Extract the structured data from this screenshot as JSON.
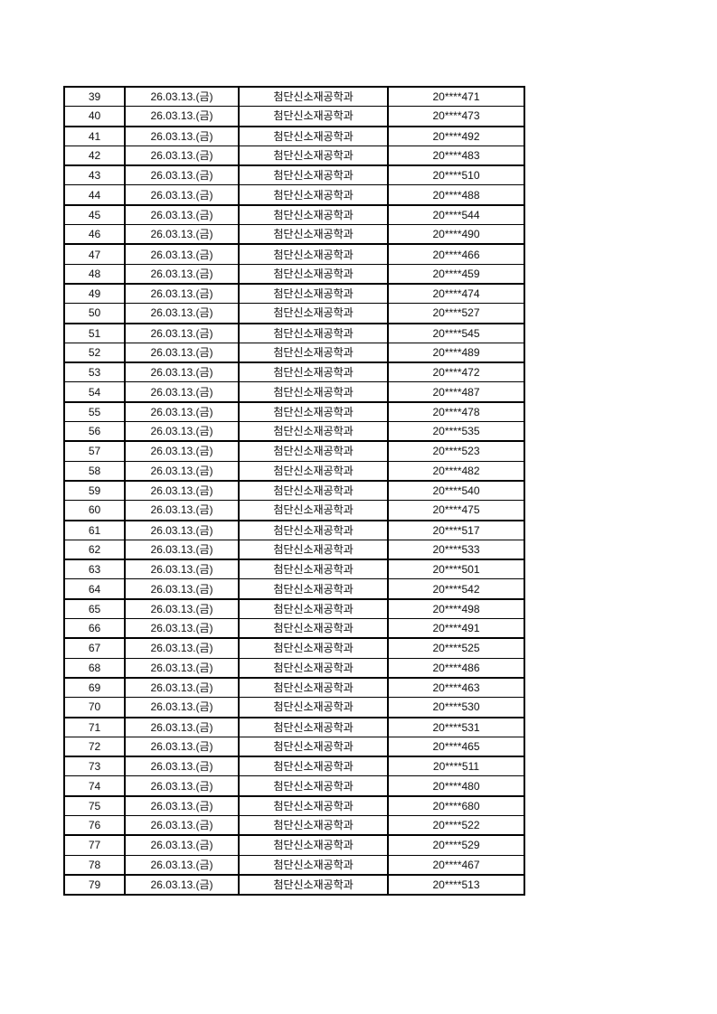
{
  "document": {
    "type": "printed-roster-page",
    "background_color": "#ffffff",
    "text_color": "#1a1a1a",
    "border_color": "#000000"
  },
  "table": {
    "columns": [
      {
        "name": "row-number"
      },
      {
        "name": "exam-date"
      },
      {
        "name": "department"
      },
      {
        "name": "student-id"
      }
    ],
    "repeated_values": {
      "date": "26.03.13.(금)",
      "department": "첨단신소재공학과"
    },
    "rows": [
      [
        "39",
        "26.03.13.(금)",
        "첨단신소재공학과",
        "20****471"
      ],
      [
        "40",
        "26.03.13.(금)",
        "첨단신소재공학과",
        "20****473"
      ],
      [
        "41",
        "26.03.13.(금)",
        "첨단신소재공학과",
        "20****492"
      ],
      [
        "42",
        "26.03.13.(금)",
        "첨단신소재공학과",
        "20****483"
      ],
      [
        "43",
        "26.03.13.(금)",
        "첨단신소재공학과",
        "20****510"
      ],
      [
        "44",
        "26.03.13.(금)",
        "첨단신소재공학과",
        "20****488"
      ],
      [
        "45",
        "26.03.13.(금)",
        "첨단신소재공학과",
        "20****544"
      ],
      [
        "46",
        "26.03.13.(금)",
        "첨단신소재공학과",
        "20****490"
      ],
      [
        "47",
        "26.03.13.(금)",
        "첨단신소재공학과",
        "20****466"
      ],
      [
        "48",
        "26.03.13.(금)",
        "첨단신소재공학과",
        "20****459"
      ],
      [
        "49",
        "26.03.13.(금)",
        "첨단신소재공학과",
        "20****474"
      ],
      [
        "50",
        "26.03.13.(금)",
        "첨단신소재공학과",
        "20****527"
      ],
      [
        "51",
        "26.03.13.(금)",
        "첨단신소재공학과",
        "20****545"
      ],
      [
        "52",
        "26.03.13.(금)",
        "첨단신소재공학과",
        "20****489"
      ],
      [
        "53",
        "26.03.13.(금)",
        "첨단신소재공학과",
        "20****472"
      ],
      [
        "54",
        "26.03.13.(금)",
        "첨단신소재공학과",
        "20****487"
      ],
      [
        "55",
        "26.03.13.(금)",
        "첨단신소재공학과",
        "20****478"
      ],
      [
        "56",
        "26.03.13.(금)",
        "첨단신소재공학과",
        "20****535"
      ],
      [
        "57",
        "26.03.13.(금)",
        "첨단신소재공학과",
        "20****523"
      ],
      [
        "58",
        "26.03.13.(금)",
        "첨단신소재공학과",
        "20****482"
      ],
      [
        "59",
        "26.03.13.(금)",
        "첨단신소재공학과",
        "20****540"
      ],
      [
        "60",
        "26.03.13.(금)",
        "첨단신소재공학과",
        "20****475"
      ],
      [
        "61",
        "26.03.13.(금)",
        "첨단신소재공학과",
        "20****517"
      ],
      [
        "62",
        "26.03.13.(금)",
        "첨단신소재공학과",
        "20****533"
      ],
      [
        "63",
        "26.03.13.(금)",
        "첨단신소재공학과",
        "20****501"
      ],
      [
        "64",
        "26.03.13.(금)",
        "첨단신소재공학과",
        "20****542"
      ],
      [
        "65",
        "26.03.13.(금)",
        "첨단신소재공학과",
        "20****498"
      ],
      [
        "66",
        "26.03.13.(금)",
        "첨단신소재공학과",
        "20****491"
      ],
      [
        "67",
        "26.03.13.(금)",
        "첨단신소재공학과",
        "20****525"
      ],
      [
        "68",
        "26.03.13.(금)",
        "첨단신소재공학과",
        "20****486"
      ],
      [
        "69",
        "26.03.13.(금)",
        "첨단신소재공학과",
        "20****463"
      ],
      [
        "70",
        "26.03.13.(금)",
        "첨단신소재공학과",
        "20****530"
      ],
      [
        "71",
        "26.03.13.(금)",
        "첨단신소재공학과",
        "20****531"
      ],
      [
        "72",
        "26.03.13.(금)",
        "첨단신소재공학과",
        "20****465"
      ],
      [
        "73",
        "26.03.13.(금)",
        "첨단신소재공학과",
        "20****511"
      ],
      [
        "74",
        "26.03.13.(금)",
        "첨단신소재공학과",
        "20****480"
      ],
      [
        "75",
        "26.03.13.(금)",
        "첨단신소재공학과",
        "20****680"
      ],
      [
        "76",
        "26.03.13.(금)",
        "첨단신소재공학과",
        "20****522"
      ],
      [
        "77",
        "26.03.13.(금)",
        "첨단신소재공학과",
        "20****529"
      ],
      [
        "78",
        "26.03.13.(금)",
        "첨단신소재공학과",
        "20****467"
      ],
      [
        "79",
        "26.03.13.(금)",
        "첨단신소재공학과",
        "20****513"
      ]
    ]
  }
}
